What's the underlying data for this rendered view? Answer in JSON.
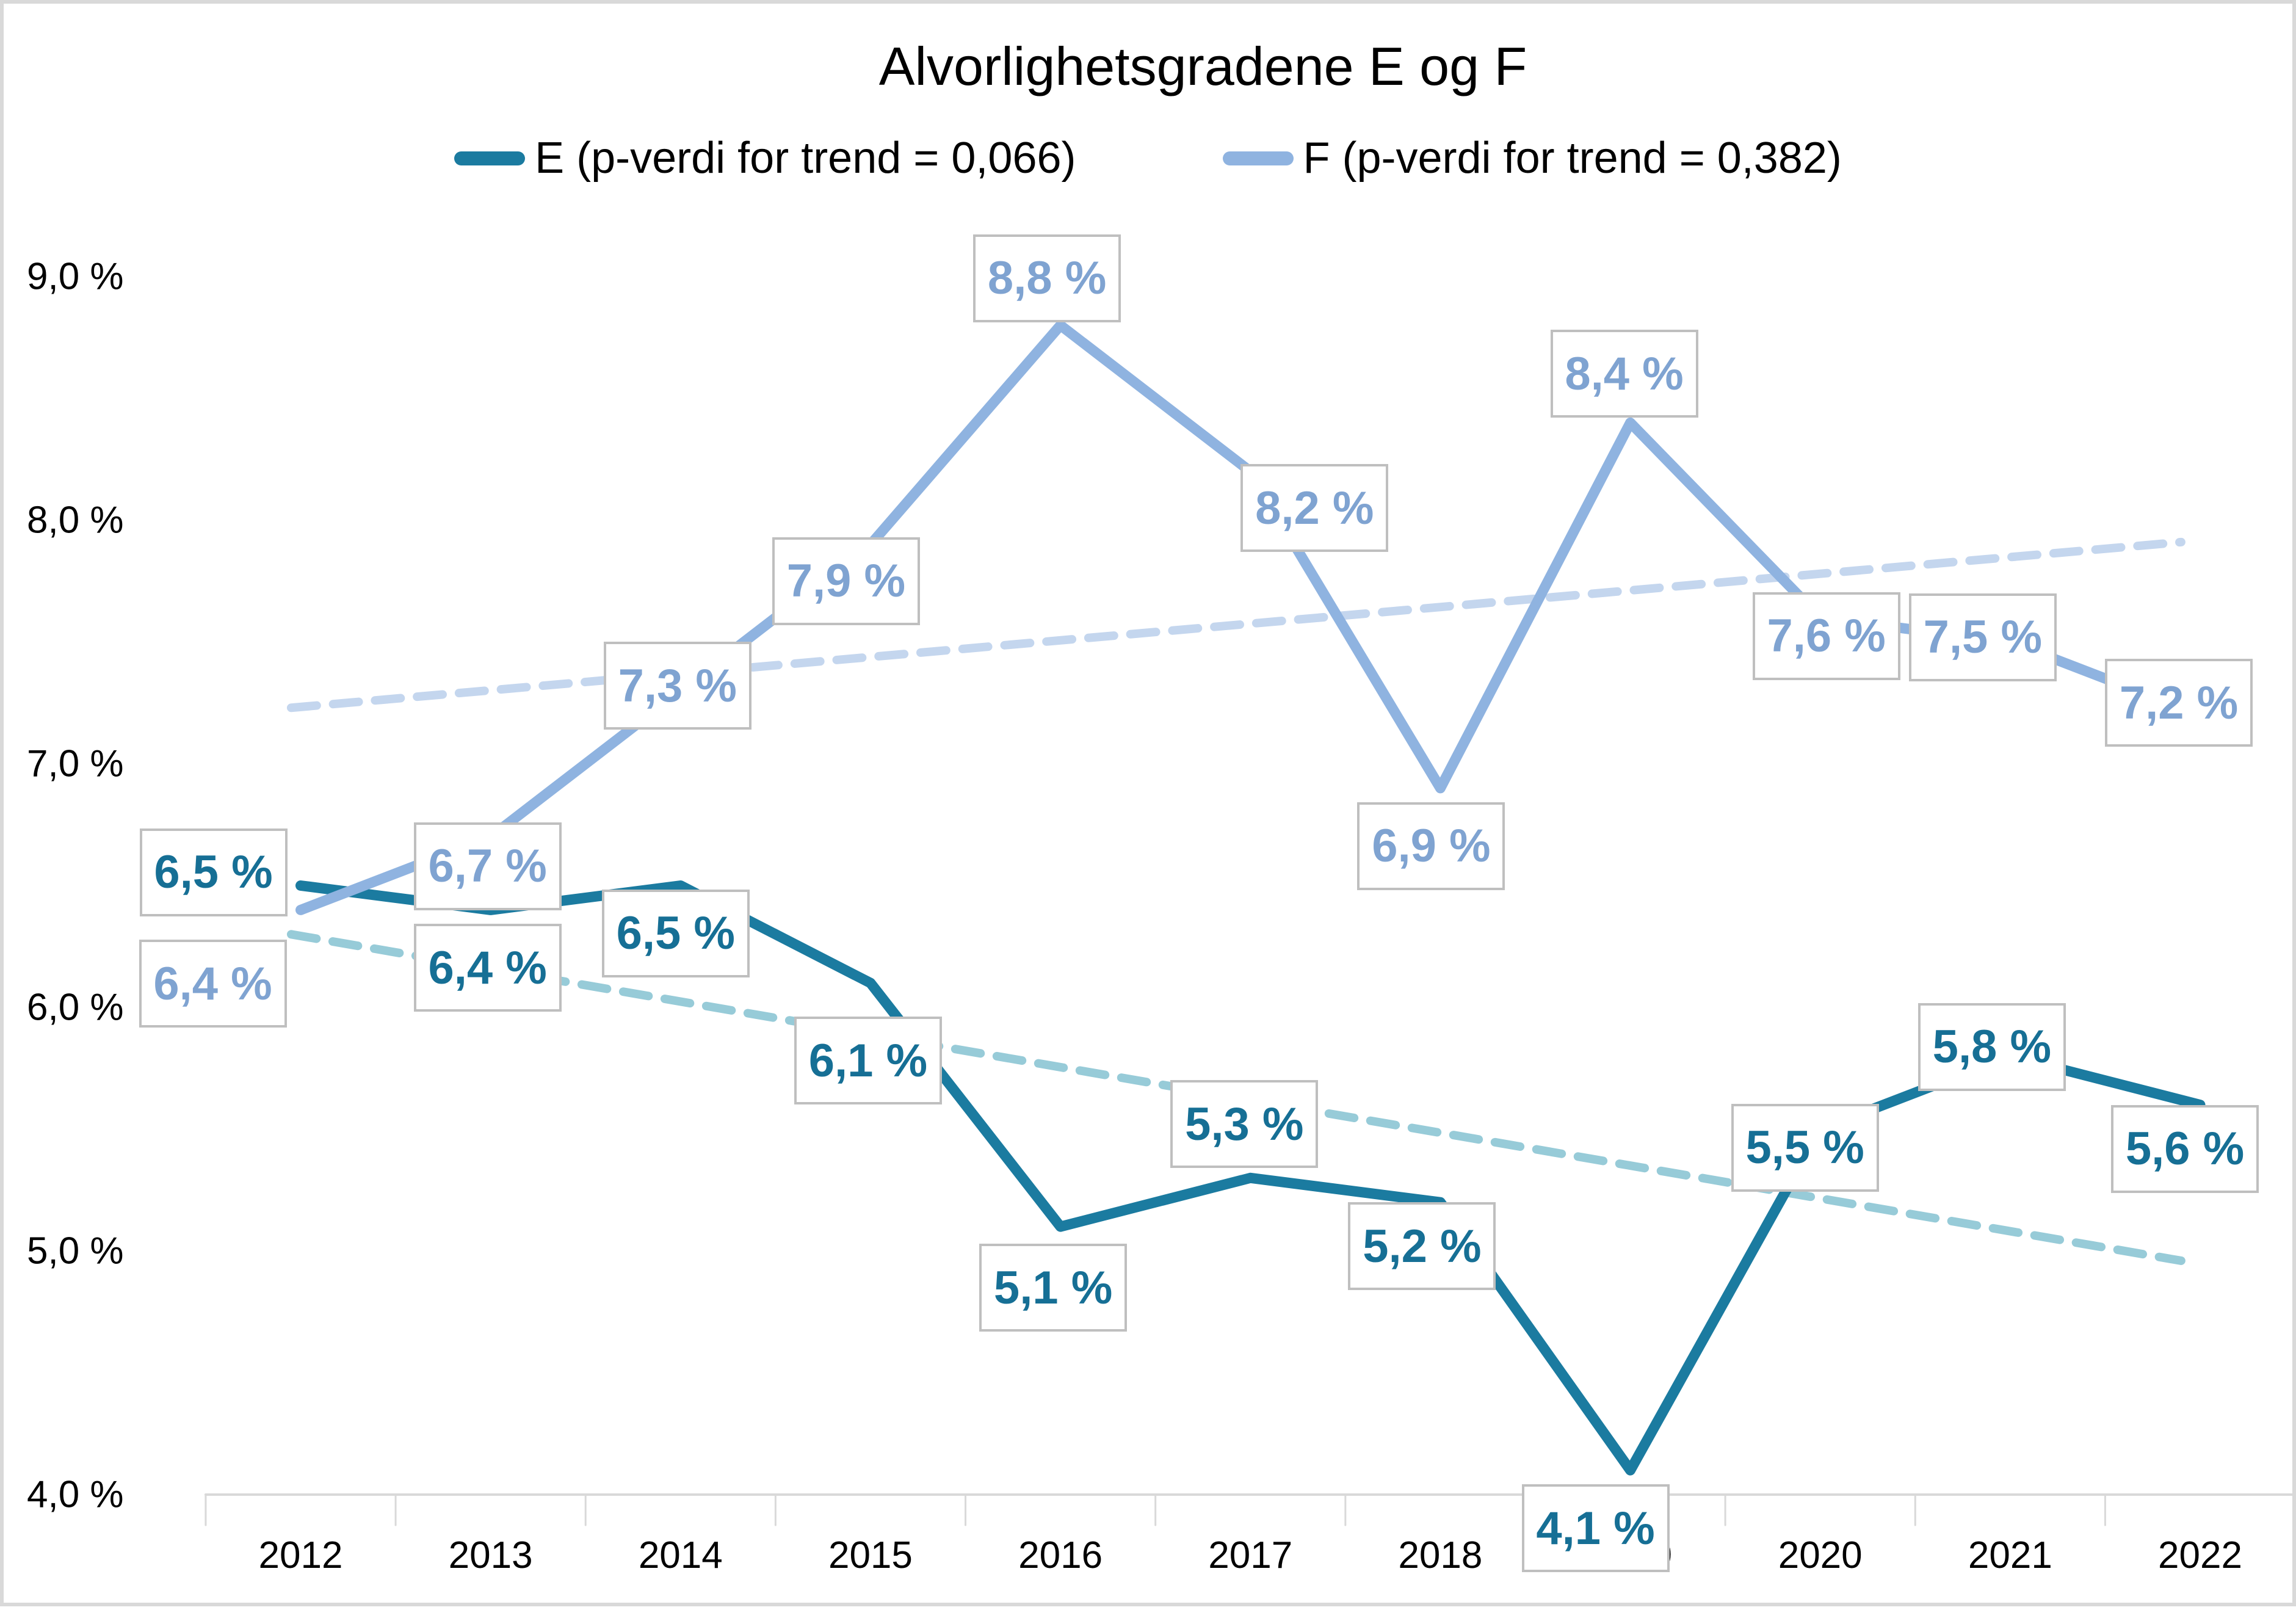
{
  "title": "Alvorlighetsgradene E og F",
  "colors": {
    "series_e": "#1B7BA0",
    "series_e_label": "#166F95",
    "series_f": "#8FB3E0",
    "series_f_label": "#7FA3D1",
    "trend_e": "#97CBD8",
    "trend_f": "#C4D6EE",
    "label_box_border": "#BFBFBF",
    "axis_line": "#D9D9D9",
    "axis_text": "#000000"
  },
  "legend": {
    "items": [
      {
        "label": "E (p-verdi for trend = 0,066)"
      },
      {
        "label": "F (p-verdi for trend = 0,382)"
      }
    ]
  },
  "chart_data": {
    "type": "line",
    "title": "Alvorlighetsgradene E og F",
    "x": [
      2012,
      2013,
      2014,
      2015,
      2016,
      2017,
      2018,
      2019,
      2020,
      2021,
      2022
    ],
    "xtick_labels": [
      "2012",
      "2013",
      "2014",
      "2015",
      "2016",
      "2017",
      "2018",
      "2019",
      "2020",
      "2021",
      "2022"
    ],
    "ylim": [
      4.0,
      9.0
    ],
    "ytick_values": [
      4.0,
      5.0,
      6.0,
      7.0,
      8.0,
      9.0
    ],
    "ytick_labels": [
      "4,0 %",
      "5,0 %",
      "6,0 %",
      "7,0 %",
      "8,0 %",
      "9,0 %"
    ],
    "grid": false,
    "legend_position": "top",
    "series": [
      {
        "name": "E (p-verdi for trend = 0,066)",
        "color": "#1B7BA0",
        "label_color": "#166F95",
        "values": [
          6.5,
          6.4,
          6.5,
          6.1,
          5.1,
          5.3,
          5.2,
          4.1,
          5.5,
          5.8,
          5.6
        ],
        "labels": [
          "6,5 %",
          "6,4 %",
          "6,5 %",
          "6,1 %",
          "5,1 %",
          "5,3 %",
          "5,2 %",
          "4,1 %",
          "5,5 %",
          "5,8 %",
          "5,6 %"
        ]
      },
      {
        "name": "F (p-verdi for trend = 0,382)",
        "color": "#8FB3E0",
        "label_color": "#7FA3D1",
        "values": [
          6.4,
          6.7,
          7.3,
          7.9,
          8.8,
          8.2,
          6.9,
          8.4,
          7.6,
          7.5,
          7.2
        ],
        "labels": [
          "6,4 %",
          "6,7 %",
          "7,3 %",
          "7,9 %",
          "8,8 %",
          "8,2 %",
          "6,9 %",
          "8,4 %",
          "7,6 %",
          "7,5 %",
          "7,2 %"
        ]
      }
    ],
    "trendlines": [
      {
        "series": "E",
        "style": "dashed",
        "color": "#97CBD8",
        "x1": 2011.95,
        "v1": 6.3,
        "x2": 2021.9,
        "v2": 4.96
      },
      {
        "series": "F",
        "style": "dashed",
        "color": "#C4D6EE",
        "x1": 2011.95,
        "v1": 7.23,
        "x2": 2021.9,
        "v2": 7.91
      }
    ]
  }
}
